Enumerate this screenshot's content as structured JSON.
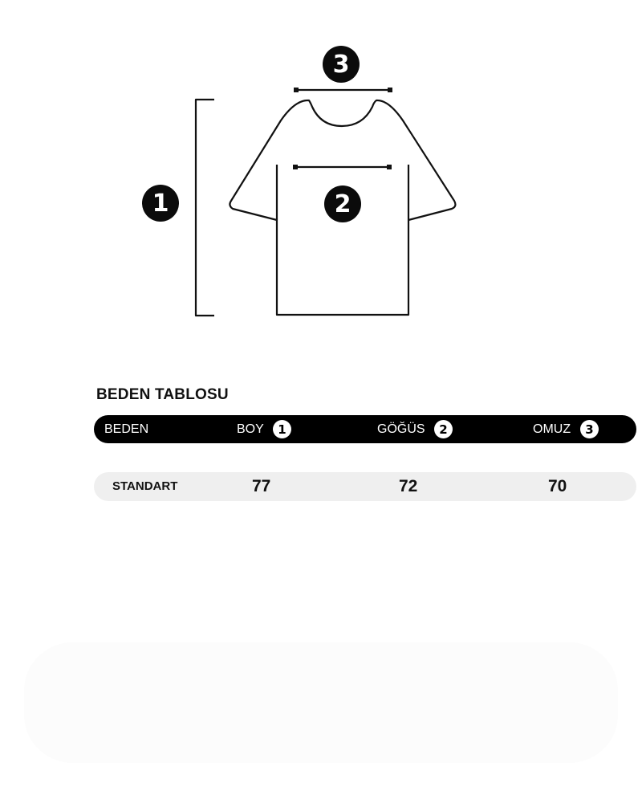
{
  "diagram": {
    "markers": [
      "1",
      "2",
      "3"
    ]
  },
  "table": {
    "title": "BEDEN TABLOSU",
    "headers": [
      {
        "label": "BEDEN"
      },
      {
        "label": "BOY",
        "marker": "1"
      },
      {
        "label": "GÖĞÜS",
        "marker": "2"
      },
      {
        "label": "OMUZ",
        "marker": "3"
      }
    ],
    "rows": [
      {
        "size": "STANDART",
        "boy": "77",
        "gogus": "72",
        "omuz": "70"
      }
    ]
  },
  "colors": {
    "header_bg": "#000000",
    "row_bg": "#efefef"
  }
}
